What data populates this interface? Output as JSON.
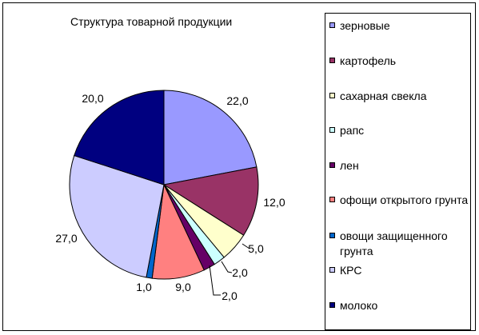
{
  "chart_data": {
    "type": "pie",
    "title": "Структура товарной продукции",
    "legend_position": "right",
    "slices": [
      {
        "name": "зерновые",
        "value": 22.0,
        "label": "22,0",
        "color": "#9999ff"
      },
      {
        "name": "картофель",
        "value": 12.0,
        "label": "12,0",
        "color": "#993366"
      },
      {
        "name": "сахарная свекла",
        "value": 5.0,
        "label": "5,0",
        "color": "#ffffcc"
      },
      {
        "name": "рапс",
        "value": 2.0,
        "label": "2,0",
        "color": "#ccffff"
      },
      {
        "name": "лен",
        "value": 2.0,
        "label": "2,0",
        "color": "#660066"
      },
      {
        "name": "офощи открытого грунта",
        "value": 9.0,
        "label": "9,0",
        "color": "#ff8080"
      },
      {
        "name": "овощи защищенного грунта",
        "value": 1.0,
        "label": "1,0",
        "color": "#0066cc"
      },
      {
        "name": "КРС",
        "value": 27.0,
        "label": "27,0",
        "color": "#ccccff"
      },
      {
        "name": "молоко",
        "value": 20.0,
        "label": "20,0",
        "color": "#000080"
      }
    ]
  }
}
